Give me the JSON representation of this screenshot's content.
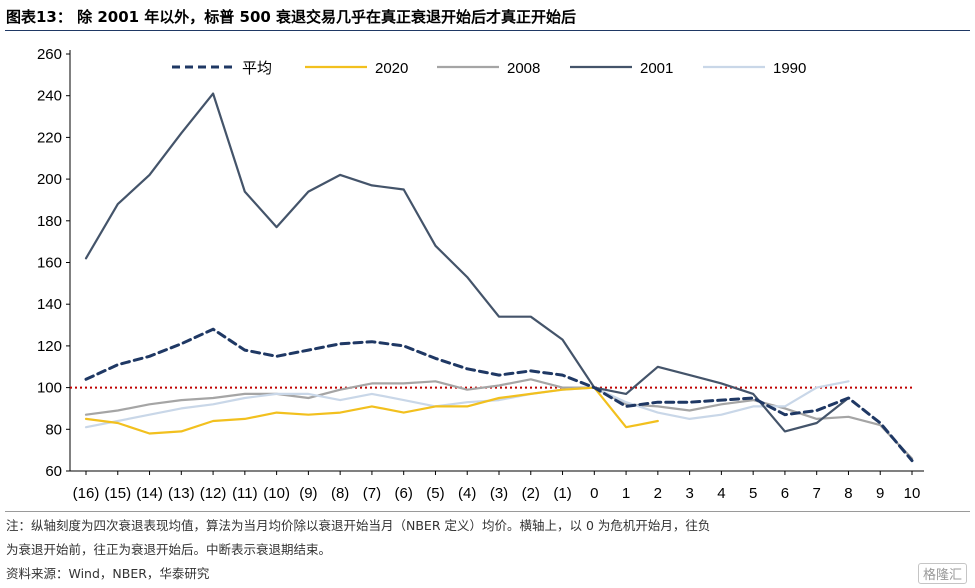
{
  "header": {
    "title": "图表13： 除 2001 年以外，标普 500 衰退交易几乎在真正衰退开始后才真正开始后"
  },
  "footer": {
    "note_line1": "注：纵轴刻度为四次衰退表现均值，算法为当月均价除以衰退开始当月（NBER 定义）均价。横轴上，以 0 为危机开始月，往负",
    "note_line2": "为衰退开始前，往正为衰退开始后。中断表示衰退期结束。",
    "source": "资料来源：Wind，NBER，华泰研究",
    "watermark": "格隆汇"
  },
  "chart_data": {
    "type": "line",
    "categories": [
      "(16)",
      "(15)",
      "(14)",
      "(13)",
      "(12)",
      "(11)",
      "(10)",
      "(9)",
      "(8)",
      "(7)",
      "(6)",
      "(5)",
      "(4)",
      "(3)",
      "(2)",
      "(1)",
      "0",
      "1",
      "2",
      "3",
      "4",
      "5",
      "6",
      "7",
      "8",
      "9",
      "10"
    ],
    "ylim": [
      60,
      260
    ],
    "yticks": [
      60,
      80,
      100,
      120,
      140,
      160,
      180,
      200,
      220,
      240,
      260
    ],
    "reference_line": {
      "value": 100,
      "color": "#c00000",
      "style": "dotted"
    },
    "legend_position": "top",
    "series": [
      {
        "name": "平均",
        "color": "#1f3864",
        "style": "dashed",
        "values": [
          104,
          111,
          115,
          121,
          128,
          118,
          115,
          118,
          121,
          122,
          120,
          114,
          109,
          106,
          108,
          106,
          100,
          91,
          93,
          93,
          94,
          95,
          87,
          89,
          95,
          83,
          65
        ]
      },
      {
        "name": "2020",
        "color": "#f2c01e",
        "style": "solid",
        "values": [
          85,
          83,
          78,
          79,
          84,
          85,
          88,
          87,
          88,
          91,
          88,
          91,
          91,
          95,
          97,
          99,
          100,
          81,
          84,
          null,
          null,
          null,
          null,
          null,
          null,
          null,
          null
        ]
      },
      {
        "name": "2008",
        "color": "#a5a5a5",
        "style": "solid",
        "values": [
          87,
          89,
          92,
          94,
          95,
          97,
          97,
          95,
          99,
          102,
          102,
          103,
          99,
          101,
          104,
          100,
          100,
          92,
          91,
          89,
          92,
          94,
          90,
          85,
          86,
          82,
          66
        ]
      },
      {
        "name": "2001",
        "color": "#44546a",
        "style": "solid",
        "values": [
          162,
          188,
          202,
          222,
          241,
          194,
          177,
          194,
          202,
          197,
          195,
          168,
          153,
          134,
          134,
          123,
          100,
          97,
          110,
          106,
          102,
          97,
          79,
          83,
          95,
          null,
          null
        ]
      },
      {
        "name": "1990",
        "color": "#c9d7e8",
        "style": "solid",
        "values": [
          81,
          84,
          87,
          90,
          92,
          95,
          97,
          97,
          94,
          97,
          94,
          91,
          93,
          94,
          97,
          99,
          100,
          93,
          88,
          85,
          87,
          91,
          91,
          100,
          103,
          null,
          null
        ]
      }
    ]
  }
}
